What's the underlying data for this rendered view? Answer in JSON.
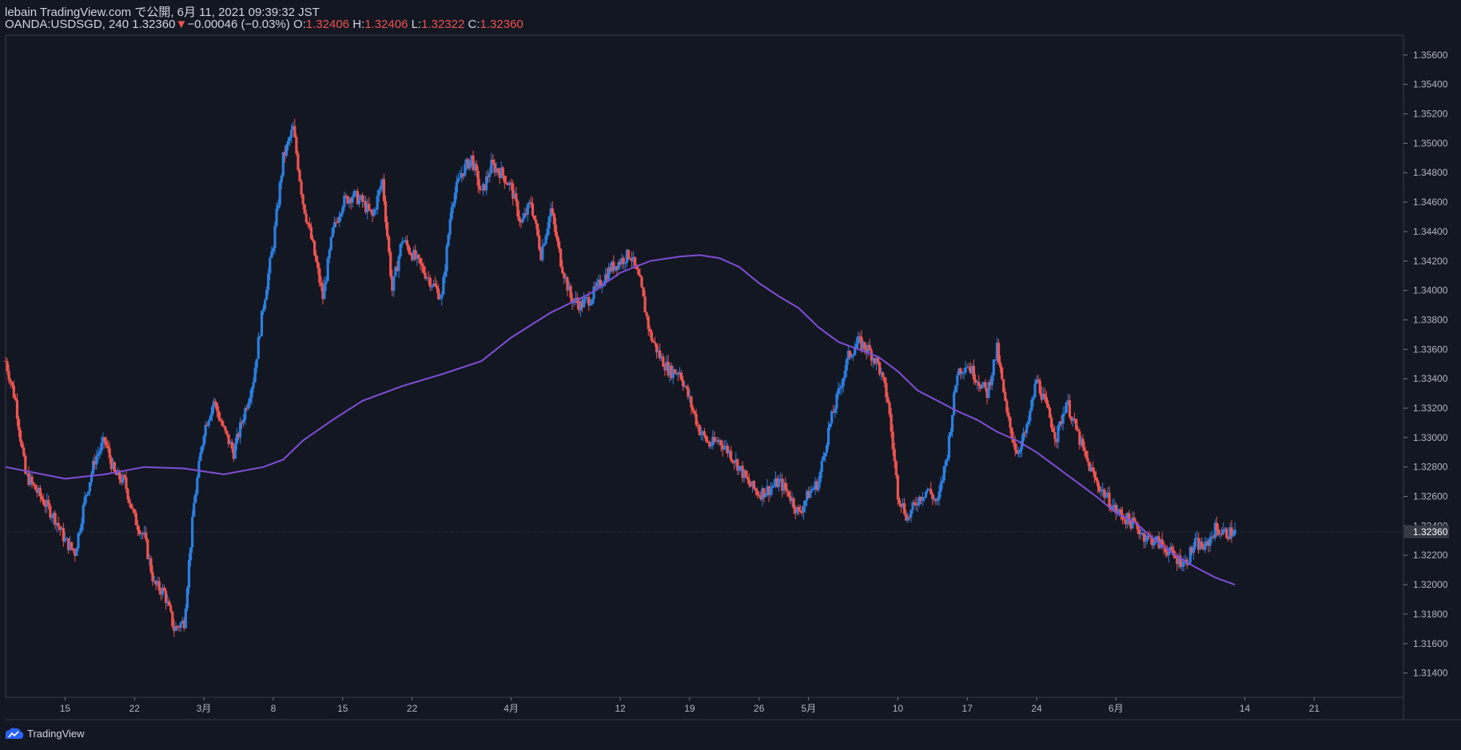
{
  "header": {
    "line1": "lebain TradingView.com で公開, 6月 11, 2021 09:39:32 JST",
    "symbol": "OANDA:USDSGD",
    "interval": "240",
    "last": "1.32360",
    "change_arrow": "▼",
    "change": "−0.00046 (−0.03%)",
    "o_label": "O:",
    "o_value": "1.32406",
    "h_label": "H:",
    "h_value": "1.32406",
    "l_label": "L:",
    "l_value": "1.32322",
    "c_label": "C:",
    "c_value": "1.32360"
  },
  "footer": {
    "brand": "TradingView"
  },
  "colors": {
    "up": "#2a7fe0",
    "down": "#ef5350",
    "ma": "#7e4fd6",
    "bg": "#131722",
    "grid": "#363a45"
  },
  "chart_data": {
    "type": "candlestick",
    "symbol": "OANDA:USDSGD",
    "interval": "240",
    "y_axis": {
      "min": 1.31235,
      "max": 1.35735,
      "ticks": [
        "1.35600",
        "1.35400",
        "1.35200",
        "1.35000",
        "1.34800",
        "1.34600",
        "1.34400",
        "1.34200",
        "1.34000",
        "1.33800",
        "1.33600",
        "1.33400",
        "1.33200",
        "1.33000",
        "1.32800",
        "1.32600",
        "1.32400",
        "1.32200",
        "1.32000",
        "1.31800",
        "1.31600",
        "1.31400"
      ],
      "last_price_label": "1.32360"
    },
    "x_axis": {
      "ticks": [
        {
          "label": "15",
          "day": 6
        },
        {
          "label": "22",
          "day": 13
        },
        {
          "label": "3月",
          "day": 20
        },
        {
          "label": "8",
          "day": 27
        },
        {
          "label": "15",
          "day": 34
        },
        {
          "label": "22",
          "day": 41
        },
        {
          "label": "4月",
          "day": 51
        },
        {
          "label": "12",
          "day": 62
        },
        {
          "label": "19",
          "day": 69
        },
        {
          "label": "26",
          "day": 76
        },
        {
          "label": "5月",
          "day": 81
        },
        {
          "label": "10",
          "day": 90
        },
        {
          "label": "17",
          "day": 97
        },
        {
          "label": "24",
          "day": 104
        },
        {
          "label": "6月",
          "day": 112
        },
        {
          "label": "14",
          "day": 125
        },
        {
          "label": "21",
          "day": 132
        }
      ],
      "day_range": [
        0,
        141
      ]
    },
    "price_path": [
      [
        0,
        1.3352
      ],
      [
        1,
        1.3325
      ],
      [
        2,
        1.3275
      ],
      [
        3,
        1.3265
      ],
      [
        4,
        1.3255
      ],
      [
        5,
        1.3245
      ],
      [
        6,
        1.323
      ],
      [
        7,
        1.3222
      ],
      [
        8,
        1.3258
      ],
      [
        9,
        1.3285
      ],
      [
        10,
        1.3298
      ],
      [
        11,
        1.3275
      ],
      [
        12,
        1.327
      ],
      [
        13,
        1.3245
      ],
      [
        14,
        1.3232
      ],
      [
        15,
        1.32
      ],
      [
        16,
        1.3195
      ],
      [
        17,
        1.317
      ],
      [
        18,
        1.3175
      ],
      [
        19,
        1.3255
      ],
      [
        20,
        1.3305
      ],
      [
        21,
        1.3325
      ],
      [
        22,
        1.3305
      ],
      [
        23,
        1.329
      ],
      [
        24,
        1.3315
      ],
      [
        25,
        1.334
      ],
      [
        26,
        1.339
      ],
      [
        27,
        1.3432
      ],
      [
        28,
        1.349
      ],
      [
        29,
        1.351
      ],
      [
        30,
        1.346
      ],
      [
        31,
        1.343
      ],
      [
        32,
        1.3395
      ],
      [
        33,
        1.344
      ],
      [
        34,
        1.346
      ],
      [
        35,
        1.3465
      ],
      [
        36,
        1.346
      ],
      [
        37,
        1.345
      ],
      [
        38,
        1.3475
      ],
      [
        39,
        1.34
      ],
      [
        40,
        1.3435
      ],
      [
        41,
        1.3425
      ],
      [
        42,
        1.3415
      ],
      [
        43,
        1.3405
      ],
      [
        44,
        1.3395
      ],
      [
        45,
        1.346
      ],
      [
        46,
        1.348
      ],
      [
        47,
        1.349
      ],
      [
        48,
        1.3465
      ],
      [
        49,
        1.3485
      ],
      [
        50,
        1.348
      ],
      [
        51,
        1.347
      ],
      [
        52,
        1.3445
      ],
      [
        53,
        1.346
      ],
      [
        54,
        1.3425
      ],
      [
        55,
        1.3455
      ],
      [
        56,
        1.342
      ],
      [
        57,
        1.3395
      ],
      [
        58,
        1.339
      ],
      [
        59,
        1.3395
      ],
      [
        60,
        1.3405
      ],
      [
        61,
        1.3415
      ],
      [
        62,
        1.342
      ],
      [
        63,
        1.3425
      ],
      [
        64,
        1.3405
      ],
      [
        65,
        1.337
      ],
      [
        66,
        1.3355
      ],
      [
        67,
        1.3345
      ],
      [
        68,
        1.3345
      ],
      [
        69,
        1.3325
      ],
      [
        70,
        1.3305
      ],
      [
        71,
        1.3295
      ],
      [
        72,
        1.3298
      ],
      [
        73,
        1.329
      ],
      [
        74,
        1.328
      ],
      [
        75,
        1.3268
      ],
      [
        76,
        1.3262
      ],
      [
        77,
        1.3265
      ],
      [
        78,
        1.327
      ],
      [
        79,
        1.3262
      ],
      [
        80,
        1.3248
      ],
      [
        81,
        1.3262
      ],
      [
        82,
        1.327
      ],
      [
        83,
        1.3305
      ],
      [
        84,
        1.333
      ],
      [
        85,
        1.3355
      ],
      [
        86,
        1.3365
      ],
      [
        87,
        1.336
      ],
      [
        88,
        1.335
      ],
      [
        89,
        1.3325
      ],
      [
        90,
        1.3262
      ],
      [
        91,
        1.3245
      ],
      [
        92,
        1.3258
      ],
      [
        93,
        1.3265
      ],
      [
        94,
        1.3255
      ],
      [
        95,
        1.329
      ],
      [
        96,
        1.3345
      ],
      [
        97,
        1.335
      ],
      [
        98,
        1.334
      ],
      [
        99,
        1.333
      ],
      [
        100,
        1.336
      ],
      [
        101,
        1.3315
      ],
      [
        102,
        1.329
      ],
      [
        103,
        1.3305
      ],
      [
        104,
        1.334
      ],
      [
        105,
        1.332
      ],
      [
        106,
        1.33
      ],
      [
        107,
        1.3325
      ],
      [
        108,
        1.3305
      ],
      [
        109,
        1.3285
      ],
      [
        110,
        1.327
      ],
      [
        111,
        1.326
      ],
      [
        112,
        1.325
      ],
      [
        113,
        1.3245
      ],
      [
        114,
        1.324
      ],
      [
        115,
        1.3232
      ],
      [
        116,
        1.323
      ],
      [
        117,
        1.3225
      ],
      [
        118,
        1.3218
      ],
      [
        119,
        1.3215
      ],
      [
        120,
        1.3228
      ],
      [
        121,
        1.3225
      ],
      [
        122,
        1.3238
      ],
      [
        123,
        1.3235
      ],
      [
        124,
        1.3236
      ]
    ],
    "ma_series": {
      "name": "Moving Average",
      "points": [
        [
          0,
          1.328
        ],
        [
          6,
          1.3272
        ],
        [
          10,
          1.3275
        ],
        [
          14,
          1.328
        ],
        [
          18,
          1.3279
        ],
        [
          22,
          1.3275
        ],
        [
          26,
          1.328
        ],
        [
          28,
          1.3285
        ],
        [
          30,
          1.3298
        ],
        [
          33,
          1.3312
        ],
        [
          36,
          1.3325
        ],
        [
          40,
          1.3335
        ],
        [
          44,
          1.3343
        ],
        [
          48,
          1.3352
        ],
        [
          51,
          1.3368
        ],
        [
          55,
          1.3385
        ],
        [
          59,
          1.3398
        ],
        [
          62,
          1.3412
        ],
        [
          65,
          1.342
        ],
        [
          68,
          1.3423
        ],
        [
          70,
          1.3424
        ],
        [
          72,
          1.3422
        ],
        [
          74,
          1.3416
        ],
        [
          76,
          1.3405
        ],
        [
          78,
          1.3396
        ],
        [
          80,
          1.3388
        ],
        [
          82,
          1.3375
        ],
        [
          84,
          1.3365
        ],
        [
          86,
          1.336
        ],
        [
          88,
          1.3355
        ],
        [
          90,
          1.3345
        ],
        [
          92,
          1.3332
        ],
        [
          94,
          1.3325
        ],
        [
          96,
          1.3318
        ],
        [
          98,
          1.3312
        ],
        [
          100,
          1.3304
        ],
        [
          102,
          1.3298
        ],
        [
          104,
          1.329
        ],
        [
          106,
          1.328
        ],
        [
          108,
          1.327
        ],
        [
          110,
          1.326
        ],
        [
          112,
          1.3249
        ],
        [
          114,
          1.3242
        ],
        [
          116,
          1.323
        ],
        [
          118,
          1.322
        ],
        [
          120,
          1.3212
        ],
        [
          122,
          1.3205
        ],
        [
          124,
          1.32
        ]
      ]
    }
  }
}
